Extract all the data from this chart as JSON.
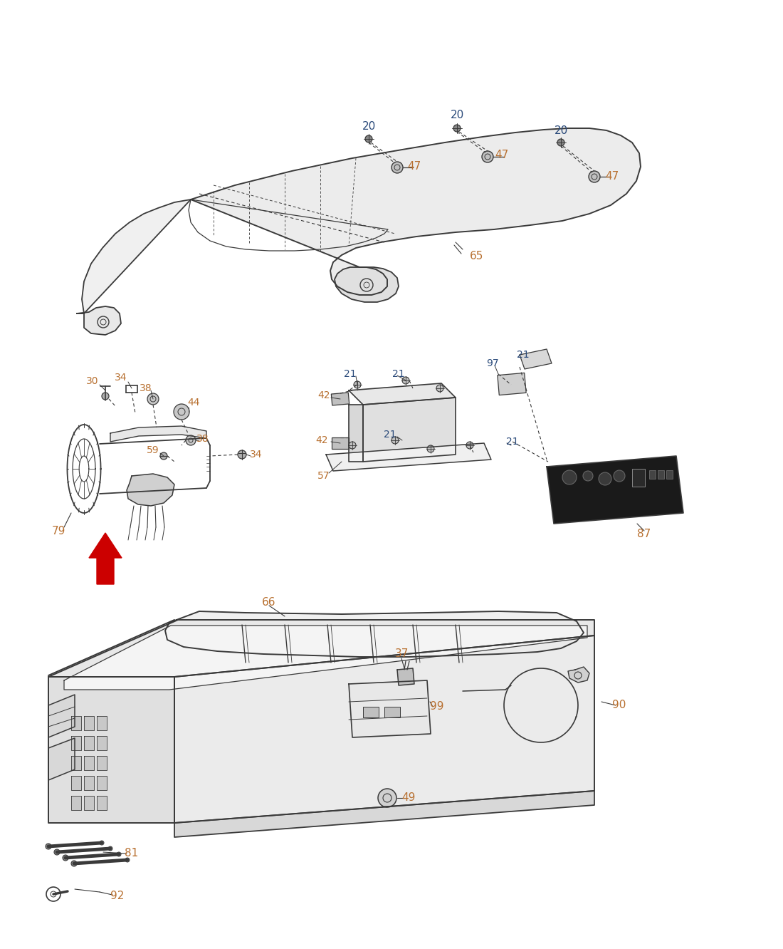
{
  "bg_color": "#ffffff",
  "lc": "#3a3a3a",
  "oc": "#b87030",
  "dc": "#2a4a7a",
  "rc": "#cc0000"
}
